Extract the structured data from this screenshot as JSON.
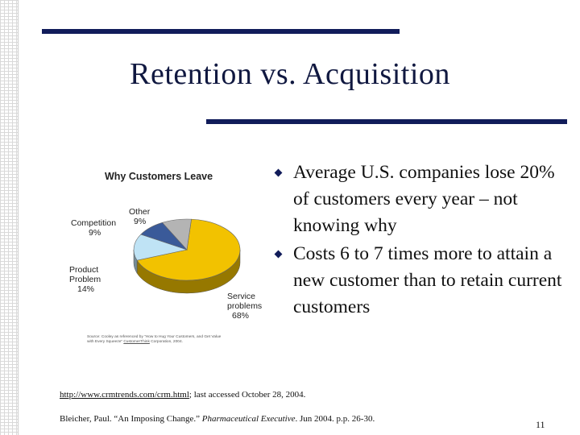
{
  "slide": {
    "title": "Retention vs. Acquisition",
    "page_number": "11",
    "bullets": [
      "Average U.S. companies lose 20% of customers every year – not knowing why",
      "Costs 6 to 7 times more to attain a new customer than to retain current customers"
    ],
    "references": {
      "ref1_link": "http://www.crmtrends.com/crm.html",
      "ref1_rest": "; last accessed October 28, 2004.",
      "ref2_pre": "Bleicher, Paul.  “An Imposing Change.”  ",
      "ref2_journal": "Pharmaceutical Executive",
      "ref2_post": ". Jun 2004. p.p. 26-30."
    }
  },
  "chart_data": {
    "type": "pie",
    "title": "Why Customers Leave",
    "slices": [
      {
        "name": "Service problems",
        "value": 68,
        "color": "#f2c200"
      },
      {
        "name": "Product Problem",
        "value": 14,
        "color": "#bfe3f5"
      },
      {
        "name": "Competition",
        "value": 9,
        "color": "#3a5a99"
      },
      {
        "name": "Other",
        "value": 9,
        "color": "#b4b4b4"
      }
    ],
    "labels": {
      "competition_1": "Competition",
      "competition_2": "9%",
      "other_1": "Other",
      "other_2": "9%",
      "product_1": "Product",
      "product_2": "Problem",
      "product_3": "14%",
      "service_1": "Service",
      "service_2": "problems",
      "service_3": "68%"
    },
    "source": {
      "text_1": "Source: Cooley as referenced by “How to Hug Your Customers, and Get Value",
      "text_2a": "with Every Squeeze”",
      "link": "CustomerThink",
      "text_2b": " Corporation, 2004."
    }
  }
}
